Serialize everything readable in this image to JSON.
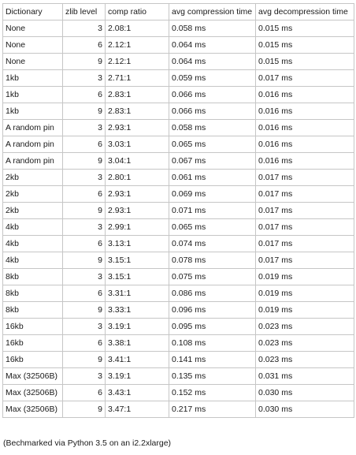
{
  "table": {
    "headers": [
      "Dictionary",
      "zlib level",
      "comp ratio",
      "avg compression time",
      "avg decompression time"
    ],
    "rows": [
      [
        "None",
        "3",
        "2.08:1",
        "0.058 ms",
        "0.015 ms"
      ],
      [
        "None",
        "6",
        "2.12:1",
        "0.064 ms",
        "0.015 ms"
      ],
      [
        "None",
        "9",
        "2.12:1",
        "0.064 ms",
        "0.015 ms"
      ],
      [
        "1kb",
        "3",
        "2.71:1",
        "0.059 ms",
        "0.017 ms"
      ],
      [
        "1kb",
        "6",
        "2.83:1",
        "0.066 ms",
        "0.016 ms"
      ],
      [
        "1kb",
        "9",
        "2.83:1",
        "0.066 ms",
        "0.016 ms"
      ],
      [
        "A random pin",
        "3",
        "2.93:1",
        "0.058 ms",
        "0.016 ms"
      ],
      [
        "A random pin",
        "6",
        "3.03:1",
        "0.065 ms",
        "0.016 ms"
      ],
      [
        "A random pin",
        "9",
        "3.04:1",
        "0.067 ms",
        "0.016 ms"
      ],
      [
        "2kb",
        "3",
        "2.80:1",
        "0.061 ms",
        "0.017 ms"
      ],
      [
        "2kb",
        "6",
        "2.93:1",
        "0.069 ms",
        "0.017 ms"
      ],
      [
        "2kb",
        "9",
        "2.93:1",
        "0.071 ms",
        "0.017 ms"
      ],
      [
        "4kb",
        "3",
        "2.99:1",
        "0.065 ms",
        "0.017 ms"
      ],
      [
        "4kb",
        "6",
        "3.13:1",
        "0.074 ms",
        "0.017 ms"
      ],
      [
        "4kb",
        "9",
        "3.15:1",
        "0.078 ms",
        "0.017 ms"
      ],
      [
        "8kb",
        "3",
        "3.15:1",
        "0.075 ms",
        "0.019 ms"
      ],
      [
        "8kb",
        "6",
        "3.31:1",
        "0.086 ms",
        "0.019 ms"
      ],
      [
        "8kb",
        "9",
        "3.33:1",
        "0.096 ms",
        "0.019 ms"
      ],
      [
        "16kb",
        "3",
        "3.19:1",
        "0.095 ms",
        "0.023 ms"
      ],
      [
        "16kb",
        "6",
        "3.38:1",
        "0.108 ms",
        "0.023 ms"
      ],
      [
        "16kb",
        "9",
        "3.41:1",
        "0.141 ms",
        "0.023 ms"
      ],
      [
        "Max (32506B)",
        "3",
        "3.19:1",
        "0.135 ms",
        "0.031 ms"
      ],
      [
        "Max (32506B)",
        "6",
        "3.43:1",
        "0.152 ms",
        "0.030 ms"
      ],
      [
        "Max (32506B)",
        "9",
        "3.47:1",
        "0.217 ms",
        "0.030 ms"
      ]
    ]
  },
  "footnote": "(Bechmarked via Python 3.5 on an i2.2xlarge)"
}
